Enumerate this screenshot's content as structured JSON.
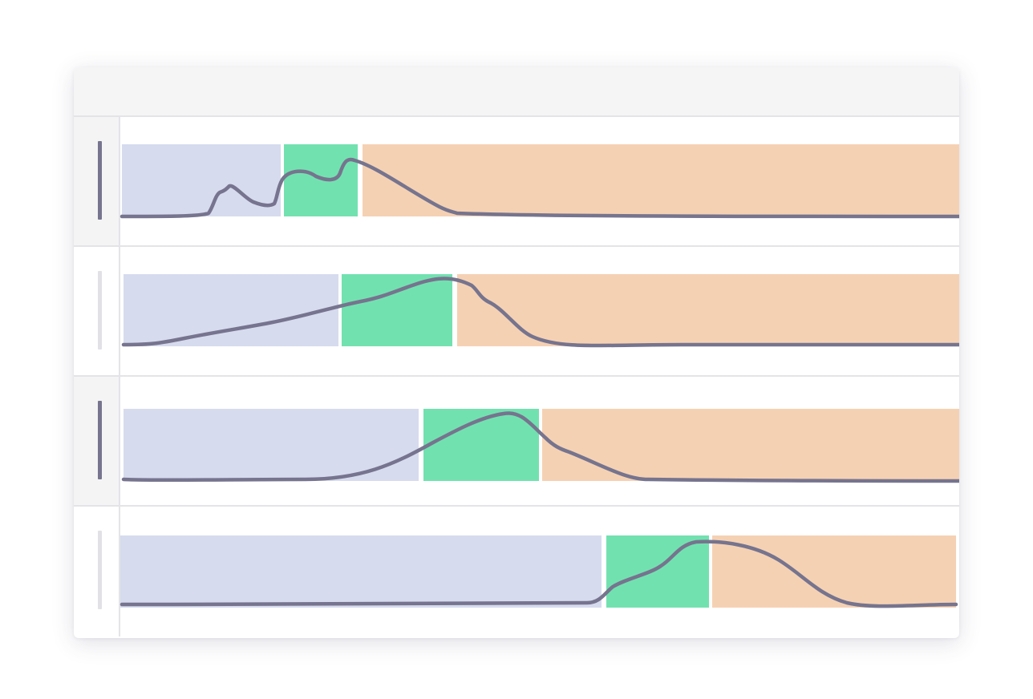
{
  "colors": {
    "segment_a": "#d6dbee",
    "segment_b": "#72e1b0",
    "segment_c": "#f5d1b3",
    "curve": "#76748e",
    "active_indicator": "#76748e",
    "inactive_indicator": "#e1e1e6"
  },
  "rows": [
    {
      "active": true,
      "segments": {
        "a": 0.19,
        "b": 0.09,
        "c": 0.72
      }
    },
    {
      "active": false,
      "segments": {
        "a": 0.26,
        "b": 0.135,
        "c": 0.605
      }
    },
    {
      "active": true,
      "segments": {
        "a": 0.36,
        "b": 0.14,
        "c": 0.5
      }
    },
    {
      "active": false,
      "segments": {
        "a": 0.58,
        "b": 0.125,
        "c": 0.295
      }
    }
  ]
}
